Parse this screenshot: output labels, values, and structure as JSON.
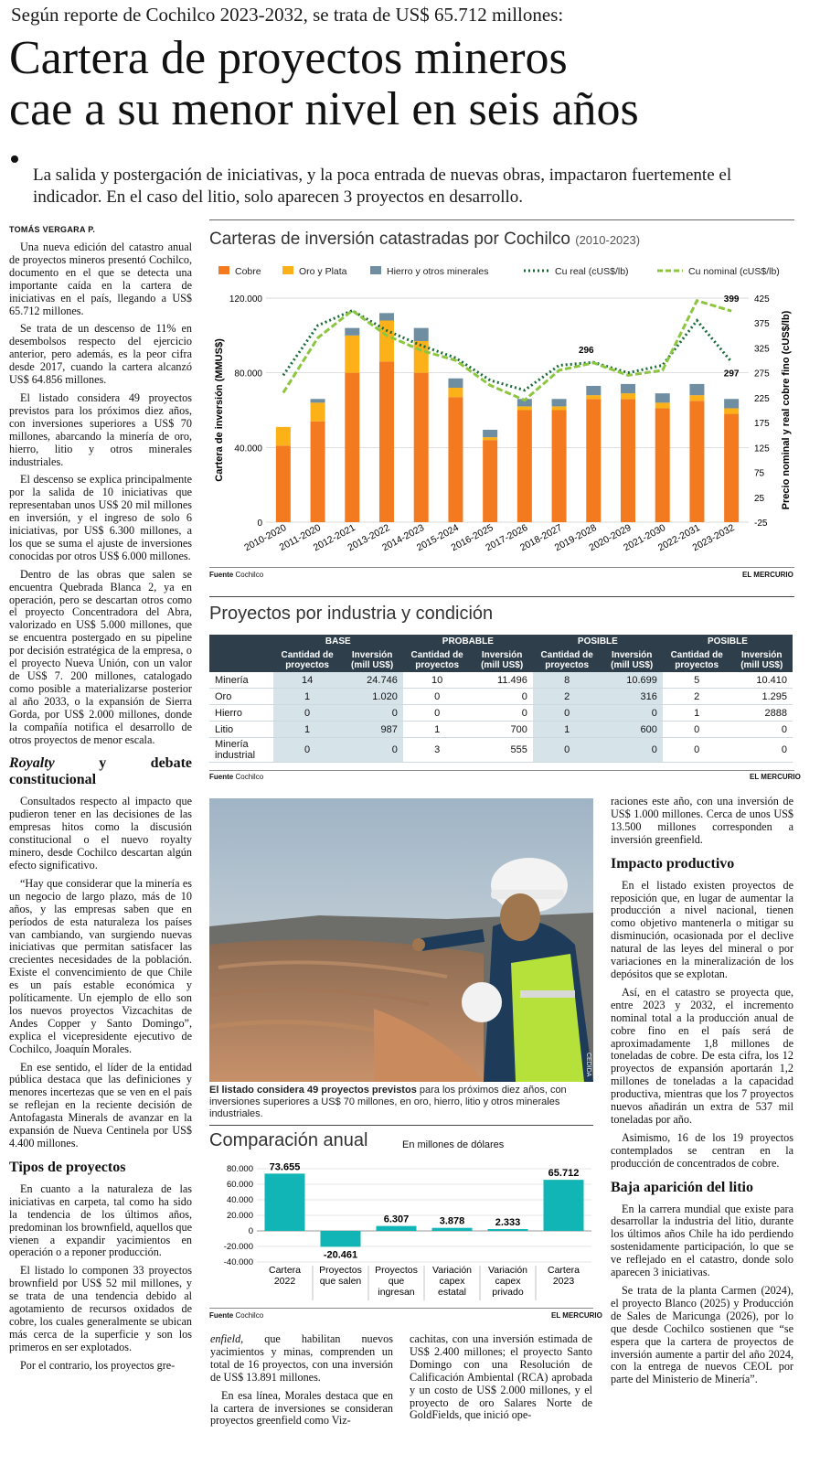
{
  "kicker": "Según reporte de Cochilco 2023-2032, se trata de US$ 65.712 millones:",
  "headline": {
    "line1": "Cartera de proyectos mineros",
    "line2": "cae a su menor nivel en seis años"
  },
  "dek": "La salida y postergación de iniciativas, y la poca entrada de nuevas obras, impactaron fuertemente el indicador. En el caso del litio, solo aparecen 3 proyectos en desarrollo.",
  "byline": "TOMÁS VERGARA P.",
  "article": {
    "left": [
      "Una nueva edición del catastro anual de proyectos mineros presentó Cochilco, documento en el que se detecta una importante caída en la cartera de iniciativas en el país, llegando a US$ 65.712 millones.",
      "Se trata de un descenso de 11% en desembolsos respecto del ejercicio anterior, pero además, es la peor cifra desde 2017, cuando la cartera alcanzó US$ 64.856 millones.",
      "El listado considera 49 proyectos previstos para los próximos diez años, con inversiones superiores a US$ 70 millones, abarcando la minería de oro, hierro, litio y otros minerales industriales.",
      "El descenso se explica principalmente por la salida de 10 iniciativas que representaban unos US$ 20 mil millones en inversión, y el ingreso de solo 6 iniciativas, por US$ 6.300 millones, a los que se suma el ajuste de inversiones conocidas por otros US$ 6.000 millones.",
      "Dentro de las obras que salen se encuentra Quebrada Blanca 2, ya en operación, pero se descartan otros como el proyecto Concentradora del Abra, valorizado en US$ 5.000 millones, que se encuentra postergado en su pipeline por decisión estratégica de la empresa, o el proyecto Nueva Unión, con un valor de US$ 7. 200 millones, catalogado como posible a materializarse posterior al año 2033, o la expansión de Sierra Gorda, por US$ 2.000 millones, donde la compañía notifica el desarrollo de otros proyectos de menor escala."
    ],
    "heading_royalty": "Royalty y debate constitucional",
    "royalty": [
      "Consultados respecto al impacto que pudieron tener en las decisiones de las empresas hitos como la discusión constitucional o el nuevo royalty minero, desde Cochilco descartan algún efecto significativo.",
      "“Hay que considerar que la minería es un negocio de largo plazo, más de 10 años, y las empresas saben que en períodos de esta naturaleza los países van cambiando, van surgiendo nuevas iniciativas que permitan satisfacer las crecientes necesidades de la población. Existe el convencimiento de que Chile es un país estable económica y políticamente. Un ejemplo de ello son los nuevos proyectos Vizcachitas de Andes Copper y Santo Domingo”, explica el vicepresidente ejecutivo de Cochilco, Joaquín Morales.",
      "En ese sentido, el líder de la entidad pública destaca que las definiciones y menores incertezas que se ven en el país se reflejan en la reciente decisión de Antofagasta Minerals de avanzar en la expansión de Nueva Centinela por US$ 4.400 millones."
    ],
    "heading_tipos": "Tipos de proyectos",
    "tipos": [
      "En cuanto a la naturaleza de las iniciativas en carpeta, tal como ha sido la tendencia de los últimos años, predominan los brownfield, aquellos que vienen a expandir yacimientos en operación o a reponer producción.",
      "El listado lo componen 33 proyectos brownfield por US$ 52 mil millones, y se trata de una tendencia debido al agotamiento de recursos oxidados de cobre, los cuales generalmente se ubican más cerca de la superficie y son los primeros en ser explotados.",
      "Por el contrario, los proyectos gre-"
    ],
    "bottom1": "enfield, que habilitan nuevos yacimientos y minas, comprenden un total de 16 proyectos, con una inversión de US$ 13.891 millones.",
    "bottom1b": "En esa línea, Morales destaca que en la cartera de inversiones se consideran proyectos greenfield como Viz-",
    "bottom2": "cachitas, con una inversión estimada de US$ 2.400 millones; el proyecto Santo Domingo con una Resolución de Calificación Ambiental (RCA) aprobada y un costo de US$ 2.000 millones, y el proyecto de oro Salares Norte de GoldFields, que inició ope-",
    "right_intro": "raciones este año, con una inversión de US$ 1.000 millones. Cerca de unos US$ 13.500 millones corresponden a inversión greenfield.",
    "heading_impacto": "Impacto productivo",
    "impacto": [
      "En el listado existen proyectos de reposición que, en lugar de aumentar la producción a nivel nacional, tienen como objetivo mantenerla o mitigar su disminución, ocasionada por el declive natural de las leyes del mineral o por variaciones en la mineralización de los depósitos que se explotan.",
      "Así, en el catastro se proyecta que, entre 2023 y 2032, el incremento nominal total a la producción anual de cobre fino en el país será de aproximadamente 1,8 millones de toneladas de cobre. De esta cifra, los 12 proyectos de expansión aportarán 1,2 millones de toneladas a la capacidad productiva, mientras que los 7 proyectos nuevos añadirán un extra de 537 mil toneladas por año.",
      "Asimismo, 16 de los 19 proyectos contemplados se centran en la producción de concentrados de cobre."
    ],
    "heading_litio": "Baja aparición del litio",
    "litio": [
      "En la carrera mundial que existe para desarrollar la industria del litio, durante los últimos años Chile ha ido perdiendo sostenidamente participación, lo que se ve reflejado en el catastro, donde solo aparecen 3 iniciativas.",
      "Se trata de la planta Carmen (2024), el proyecto Blanco (2025) y Producción de Sales de Maricunga (2026), por lo que desde Cochilco sostienen que “se espera que la cartera de proyectos de inversión aumente a partir del año 2024, con la entrega de nuevos CEOL por parte del Ministerio de Minería”."
    ]
  },
  "chart1": {
    "title": "Carteras de inversión catastradas por Cochilco",
    "period": "(2010-2023)",
    "legend": [
      "Cobre",
      "Oro y Plata",
      "Hierro y otros minerales",
      "Cu real (cUS$/lb)",
      "Cu nominal (cUS$/lb)"
    ],
    "ylabel_left": "Cartera de inversión (MMUS$)",
    "ylabel_right": "Precio nominal y real cobre fino (cUS$/lb)",
    "left_ticks": [
      "0",
      "40.000",
      "80.000",
      "120.000"
    ],
    "right_ticks": [
      "-25",
      "25",
      "75",
      "125",
      "175",
      "225",
      "275",
      "325",
      "375",
      "425"
    ],
    "annotations": [
      "296",
      "399",
      "297"
    ],
    "source_label": "Fuente",
    "source": "Cochilco",
    "publisher": "EL MERCURIO"
  },
  "chart_data": [
    {
      "type": "bar",
      "title": "Carteras de inversión catastradas por Cochilco (2010-2023)",
      "categories": [
        "2010-2020",
        "2011-2020",
        "2012-2021",
        "2013-2022",
        "2014-2023",
        "2015-2024",
        "2016-2025",
        "2017-2026",
        "2018-2027",
        "2019-2028",
        "2020-2029",
        "2021-2030",
        "2022-2031",
        "2023-2032"
      ],
      "series": [
        {
          "name": "Cobre",
          "color": "#f47a20",
          "values": [
            41000,
            54000,
            80000,
            86000,
            80000,
            67000,
            44000,
            60000,
            60000,
            66000,
            66000,
            61000,
            65000,
            58000
          ]
        },
        {
          "name": "Oro y Plata",
          "color": "#fbb117",
          "values": [
            10000,
            10000,
            20000,
            22000,
            17000,
            5000,
            1500,
            2000,
            2000,
            2000,
            3000,
            3000,
            3000,
            3000
          ]
        },
        {
          "name": "Hierro y otros minerales",
          "color": "#6f8ea2",
          "values": [
            0,
            2000,
            4000,
            4000,
            7000,
            5000,
            4000,
            4000,
            4000,
            5000,
            5000,
            5000,
            6000,
            5000
          ]
        },
        {
          "name": "Cu real (cUS$/lb)",
          "color": "#1a6b3a",
          "style": "dotted",
          "axis": "right",
          "values": [
            270,
            370,
            400,
            360,
            330,
            305,
            260,
            240,
            290,
            296,
            275,
            290,
            380,
            297
          ]
        },
        {
          "name": "Cu nominal (cUS$/lb)",
          "color": "#8cc63f",
          "style": "dashed",
          "axis": "right",
          "values": [
            235,
            345,
            400,
            350,
            320,
            300,
            250,
            220,
            280,
            295,
            270,
            280,
            420,
            399
          ]
        }
      ],
      "ylim_left": [
        0,
        120000
      ],
      "ylim_right": [
        -25,
        425
      ],
      "xlabel": "",
      "ylabel": "Cartera de inversión (MMUS$)",
      "ylabel_right": "Precio nominal y real cobre fino (cUS$/lb)",
      "legend": "top"
    },
    {
      "type": "bar",
      "title": "Comparación anual",
      "subtitle": "En millones de dólares",
      "categories": [
        "Cartera 2022",
        "Proyectos que salen",
        "Proyectos que ingresan",
        "Variación capex estatal",
        "Variación capex privado",
        "Cartera 2023"
      ],
      "values": [
        73655,
        -20461,
        6307,
        3878,
        2333,
        65712
      ],
      "labels": [
        "73.655",
        "-20.461",
        "6.307",
        "3.878",
        "2.333",
        "65.712"
      ],
      "ylim": [
        -40000,
        80000
      ],
      "color": "#11b5b5"
    }
  ],
  "table": {
    "title": "Proyectos por industria y condición",
    "groups": [
      "BASE",
      "PROBABLE",
      "POSIBLE",
      "POSIBLE"
    ],
    "sub_qty": "Cantidad de proyectos",
    "sub_inv": "Inversión (mill US$)",
    "rows": [
      {
        "label": "Minería",
        "v": [
          "14",
          "24.746",
          "10",
          "11.496",
          "8",
          "10.699",
          "5",
          "10.410"
        ]
      },
      {
        "label": "Oro",
        "v": [
          "1",
          "1.020",
          "0",
          "0",
          "2",
          "316",
          "2",
          "1.295"
        ]
      },
      {
        "label": "Hierro",
        "v": [
          "0",
          "0",
          "0",
          "0",
          "0",
          "0",
          "1",
          "2888"
        ]
      },
      {
        "label": "Litio",
        "v": [
          "1",
          "987",
          "1",
          "700",
          "1",
          "600",
          "0",
          "0"
        ]
      },
      {
        "label": "Minería industrial",
        "v": [
          "0",
          "0",
          "3",
          "555",
          "0",
          "0",
          "0",
          "0"
        ]
      }
    ],
    "source_label": "Fuente",
    "source": "Cochilco",
    "publisher": "EL MERCURIO"
  },
  "photo": {
    "caption_bold": "El listado considera 49 proyectos previstos",
    "caption": " para los próximos diez años, con inversiones superiores a US$ 70 millones, en oro, hierro, litio y otros minerales industriales.",
    "credit": "CEDIDA"
  },
  "chart2": {
    "title": "Comparación anual",
    "subtitle": "En millones de dólares",
    "ticks": [
      "80.000",
      "60.000",
      "40.000",
      "20.000",
      "0",
      "-20.000",
      "-40.000"
    ],
    "cats": [
      [
        "Cartera",
        "2022"
      ],
      [
        "Proyectos",
        "que salen"
      ],
      [
        "Proyectos",
        "que",
        "ingresan"
      ],
      [
        "Variación",
        "capex",
        "estatal"
      ],
      [
        "Variación",
        "capex",
        "privado"
      ],
      [
        "Cartera",
        "2023"
      ]
    ],
    "source_label": "Fuente",
    "source": "Cochilco",
    "publisher": "EL MERCURIO"
  }
}
